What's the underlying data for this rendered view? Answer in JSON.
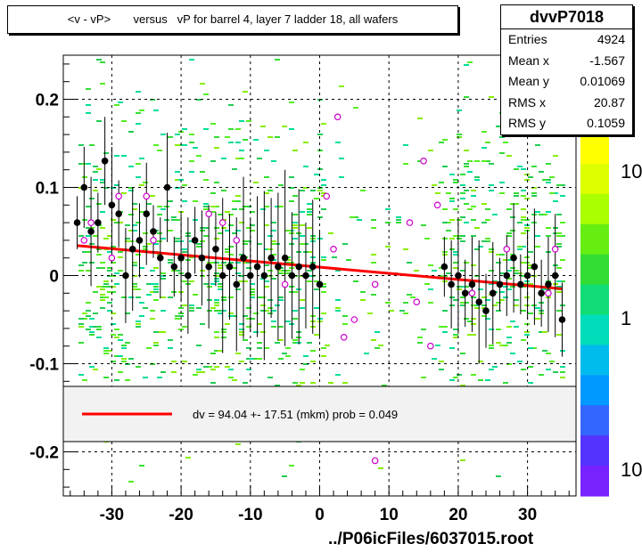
{
  "title": "<v - vP>       versus   vP for barrel 4, layer 7 ladder 18, all wafers",
  "stats": {
    "name": "dvvP7018",
    "rows": [
      {
        "label": "Entries",
        "value": "4924"
      },
      {
        "label": "Mean x",
        "value": "-1.567"
      },
      {
        "label": "Mean y",
        "value": "0.01069"
      },
      {
        "label": "RMS x",
        "value": "20.87"
      },
      {
        "label": "RMS y",
        "value": "0.1059"
      }
    ]
  },
  "legend_text": "dv =   94.04 +- 17.51 (mkm) prob = 0.049",
  "footer": "../P06icFiles/6037015.root",
  "colors": {
    "fit": "#ff0000",
    "profile": "#000000",
    "open_points": "#cc00cc",
    "hist": "#33dd33"
  },
  "chart_data": {
    "type": "scatter",
    "xlim": [
      -37,
      37
    ],
    "ylim": [
      -0.25,
      0.25
    ],
    "xticks": [
      -30,
      -20,
      -10,
      0,
      10,
      20,
      30
    ],
    "xtick_labels": [
      "-30",
      "-20",
      "-10",
      "0",
      "10",
      "20",
      "30"
    ],
    "yticks": [
      -0.2,
      -0.1,
      0,
      0.1,
      0.2
    ],
    "ytick_labels": [
      "-0.2",
      "-0.1",
      "0",
      "0.1",
      "0.2"
    ],
    "grid": true,
    "fit_line": {
      "x": [
        -35,
        35
      ],
      "y": [
        0.034,
        -0.015
      ]
    },
    "colorbar": {
      "labels": [
        "10",
        "1",
        "10"
      ]
    },
    "profile_points": [
      {
        "x": -35,
        "y": 0.06
      },
      {
        "x": -34,
        "y": 0.1
      },
      {
        "x": -33,
        "y": 0.05
      },
      {
        "x": -32,
        "y": 0.06
      },
      {
        "x": -31,
        "y": 0.13
      },
      {
        "x": -30,
        "y": 0.08
      },
      {
        "x": -29,
        "y": 0.07
      },
      {
        "x": -28,
        "y": 0.0
      },
      {
        "x": -27,
        "y": 0.03
      },
      {
        "x": -26,
        "y": 0.04
      },
      {
        "x": -25,
        "y": 0.07
      },
      {
        "x": -24,
        "y": 0.05
      },
      {
        "x": -23,
        "y": 0.02
      },
      {
        "x": -22,
        "y": 0.1
      },
      {
        "x": -21,
        "y": 0.01
      },
      {
        "x": -20,
        "y": 0.02
      },
      {
        "x": -19,
        "y": 0.0
      },
      {
        "x": -18,
        "y": 0.04
      },
      {
        "x": -17,
        "y": 0.02
      },
      {
        "x": -16,
        "y": 0.01
      },
      {
        "x": -15,
        "y": 0.03
      },
      {
        "x": -14,
        "y": 0.0
      },
      {
        "x": -13,
        "y": 0.01
      },
      {
        "x": -12,
        "y": -0.01
      },
      {
        "x": -11,
        "y": 0.02
      },
      {
        "x": -10,
        "y": 0.0
      },
      {
        "x": -9,
        "y": 0.01
      },
      {
        "x": -8,
        "y": 0.0
      },
      {
        "x": -7,
        "y": 0.02
      },
      {
        "x": -6,
        "y": 0.01
      },
      {
        "x": -5,
        "y": 0.02
      },
      {
        "x": -4,
        "y": 0.0
      },
      {
        "x": -3,
        "y": 0.01
      },
      {
        "x": -2,
        "y": 0.0
      },
      {
        "x": -1,
        "y": 0.01
      },
      {
        "x": 0,
        "y": -0.01
      },
      {
        "x": 18,
        "y": 0.01
      },
      {
        "x": 19,
        "y": -0.01
      },
      {
        "x": 20,
        "y": 0.0
      },
      {
        "x": 21,
        "y": -0.02
      },
      {
        "x": 22,
        "y": -0.01
      },
      {
        "x": 23,
        "y": -0.03
      },
      {
        "x": 24,
        "y": -0.04
      },
      {
        "x": 25,
        "y": -0.02
      },
      {
        "x": 26,
        "y": -0.01
      },
      {
        "x": 27,
        "y": 0.0
      },
      {
        "x": 28,
        "y": 0.02
      },
      {
        "x": 29,
        "y": -0.01
      },
      {
        "x": 30,
        "y": 0.0
      },
      {
        "x": 31,
        "y": 0.01
      },
      {
        "x": 32,
        "y": -0.02
      },
      {
        "x": 33,
        "y": -0.01
      },
      {
        "x": 34,
        "y": 0.0
      },
      {
        "x": 35,
        "y": -0.05
      }
    ],
    "open_points": [
      {
        "x": -34,
        "y": 0.04
      },
      {
        "x": -33,
        "y": 0.06
      },
      {
        "x": -30,
        "y": 0.02
      },
      {
        "x": -29,
        "y": 0.09
      },
      {
        "x": -25,
        "y": 0.09
      },
      {
        "x": -24,
        "y": 0.04
      },
      {
        "x": -16,
        "y": 0.07
      },
      {
        "x": -14,
        "y": 0.06
      },
      {
        "x": -12,
        "y": 0.04
      },
      {
        "x": -5,
        "y": -0.01
      },
      {
        "x": 1,
        "y": 0.09
      },
      {
        "x": 2,
        "y": 0.03
      },
      {
        "x": 2.6,
        "y": 0.18
      },
      {
        "x": 3.5,
        "y": -0.07
      },
      {
        "x": 5,
        "y": -0.05
      },
      {
        "x": 8,
        "y": -0.01
      },
      {
        "x": 8,
        "y": -0.21
      },
      {
        "x": 13,
        "y": 0.06
      },
      {
        "x": 14,
        "y": -0.03
      },
      {
        "x": 15,
        "y": 0.13
      },
      {
        "x": 16,
        "y": -0.08
      },
      {
        "x": 17,
        "y": 0.08
      },
      {
        "x": 22,
        "y": -0.02
      },
      {
        "x": 27,
        "y": 0.03
      },
      {
        "x": 33,
        "y": -0.02
      },
      {
        "x": 34,
        "y": 0.03
      }
    ]
  }
}
